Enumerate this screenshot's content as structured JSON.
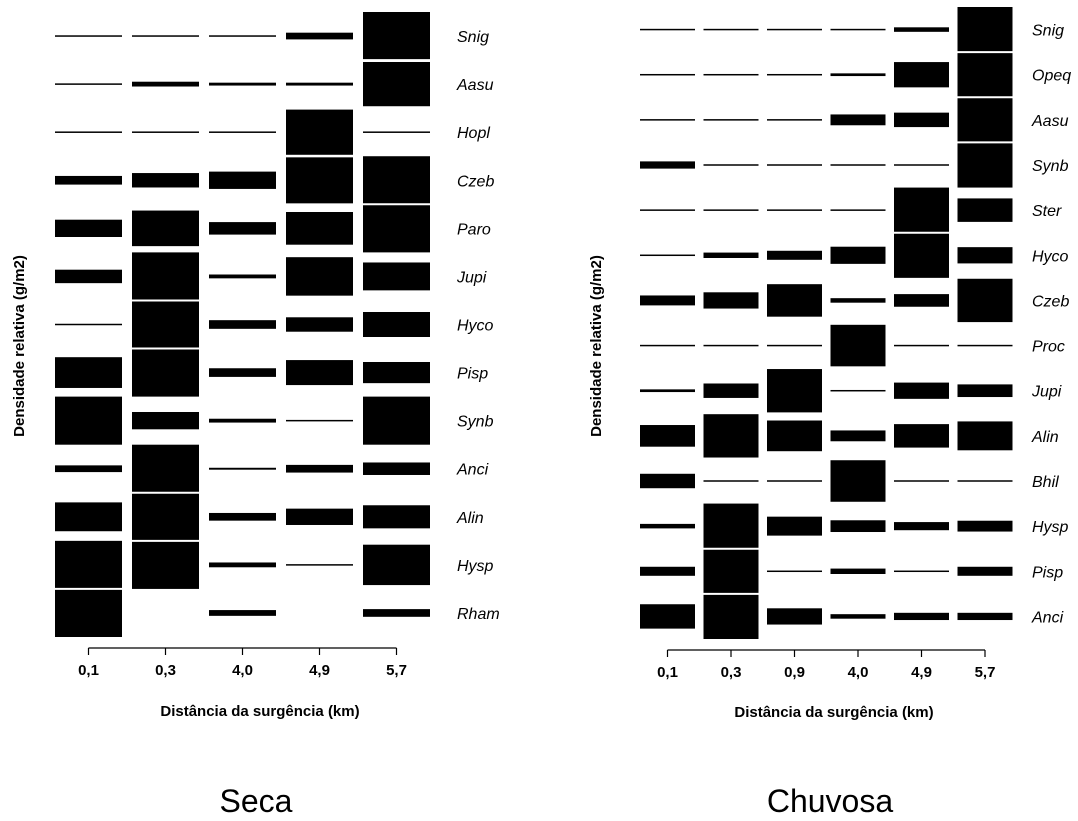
{
  "chart_data": [
    {
      "type": "bar",
      "subtype": "kite-diagram",
      "title": "Seca",
      "xlabel": "Distância da surgência (km)",
      "ylabel": "Densidade relativa (g/m2)",
      "bar_color": "#000000",
      "categories": [
        "0,1",
        "0,3",
        "4,0",
        "4,9",
        "5,7"
      ],
      "series": [
        {
          "name": "Snig",
          "values": [
            0.02,
            0.02,
            0.02,
            0.14,
            1.0
          ]
        },
        {
          "name": "Aasu",
          "values": [
            0.02,
            0.1,
            0.06,
            0.06,
            0.92
          ]
        },
        {
          "name": "Hopl",
          "values": [
            0.02,
            0.02,
            0.02,
            0.94,
            0.02
          ]
        },
        {
          "name": "Czeb",
          "values": [
            0.18,
            0.3,
            0.36,
            0.96,
            1.0
          ]
        },
        {
          "name": "Paro",
          "values": [
            0.36,
            0.74,
            0.26,
            0.68,
            1.0
          ]
        },
        {
          "name": "Jupi",
          "values": [
            0.28,
            1.0,
            0.08,
            0.8,
            0.58
          ]
        },
        {
          "name": "Hyco",
          "values": [
            0.02,
            1.0,
            0.18,
            0.3,
            0.52
          ]
        },
        {
          "name": "Pisp",
          "values": [
            0.64,
            1.0,
            0.18,
            0.52,
            0.44
          ]
        },
        {
          "name": "Synb",
          "values": [
            1.0,
            0.36,
            0.08,
            0.02,
            1.0
          ]
        },
        {
          "name": "Anci",
          "values": [
            0.14,
            1.0,
            0.04,
            0.16,
            0.26
          ]
        },
        {
          "name": "Alin",
          "values": [
            0.6,
            1.0,
            0.16,
            0.34,
            0.48
          ]
        },
        {
          "name": "Hysp",
          "values": [
            1.0,
            1.0,
            0.1,
            0.02,
            0.84
          ]
        },
        {
          "name": "Rham",
          "values": [
            1.0,
            0.0,
            0.12,
            0.0,
            0.16
          ]
        }
      ]
    },
    {
      "type": "bar",
      "subtype": "kite-diagram",
      "title": "Chuvosa",
      "xlabel": "Distância da surgência (km)",
      "ylabel": "Densidade relativa (g/m2)",
      "bar_color": "#000000",
      "categories": [
        "0,1",
        "0,3",
        "0,9",
        "4,0",
        "4,9",
        "5,7"
      ],
      "series": [
        {
          "name": "Snig",
          "values": [
            0.02,
            0.02,
            0.02,
            0.02,
            0.1,
            1.0
          ]
        },
        {
          "name": "Opeq",
          "values": [
            0.02,
            0.02,
            0.02,
            0.06,
            0.56,
            1.0
          ]
        },
        {
          "name": "Aasu",
          "values": [
            0.02,
            0.02,
            0.02,
            0.24,
            0.32,
            1.0
          ]
        },
        {
          "name": "Synb",
          "values": [
            0.16,
            0.02,
            0.02,
            0.02,
            0.02,
            1.0
          ]
        },
        {
          "name": "Ster",
          "values": [
            0.02,
            0.02,
            0.02,
            0.02,
            1.0,
            0.52
          ]
        },
        {
          "name": "Hyco",
          "values": [
            0.02,
            0.12,
            0.2,
            0.38,
            1.0,
            0.36
          ]
        },
        {
          "name": "Czeb",
          "values": [
            0.22,
            0.36,
            0.72,
            0.1,
            0.28,
            0.96
          ]
        },
        {
          "name": "Proc",
          "values": [
            0.02,
            0.02,
            0.02,
            0.92,
            0.02,
            0.02
          ]
        },
        {
          "name": "Jupi",
          "values": [
            0.06,
            0.32,
            0.96,
            0.02,
            0.36,
            0.28
          ]
        },
        {
          "name": "Alin",
          "values": [
            0.48,
            0.96,
            0.68,
            0.24,
            0.52,
            0.64
          ]
        },
        {
          "name": "Bhil",
          "values": [
            0.32,
            0.02,
            0.02,
            0.92,
            0.02,
            0.02
          ]
        },
        {
          "name": "Hysp",
          "values": [
            0.1,
            1.0,
            0.42,
            0.26,
            0.18,
            0.24
          ]
        },
        {
          "name": "Pisp",
          "values": [
            0.2,
            1.0,
            0.02,
            0.12,
            0.02,
            0.2
          ]
        },
        {
          "name": "Anci",
          "values": [
            0.54,
            1.0,
            0.36,
            0.1,
            0.16,
            0.16
          ]
        }
      ]
    }
  ]
}
